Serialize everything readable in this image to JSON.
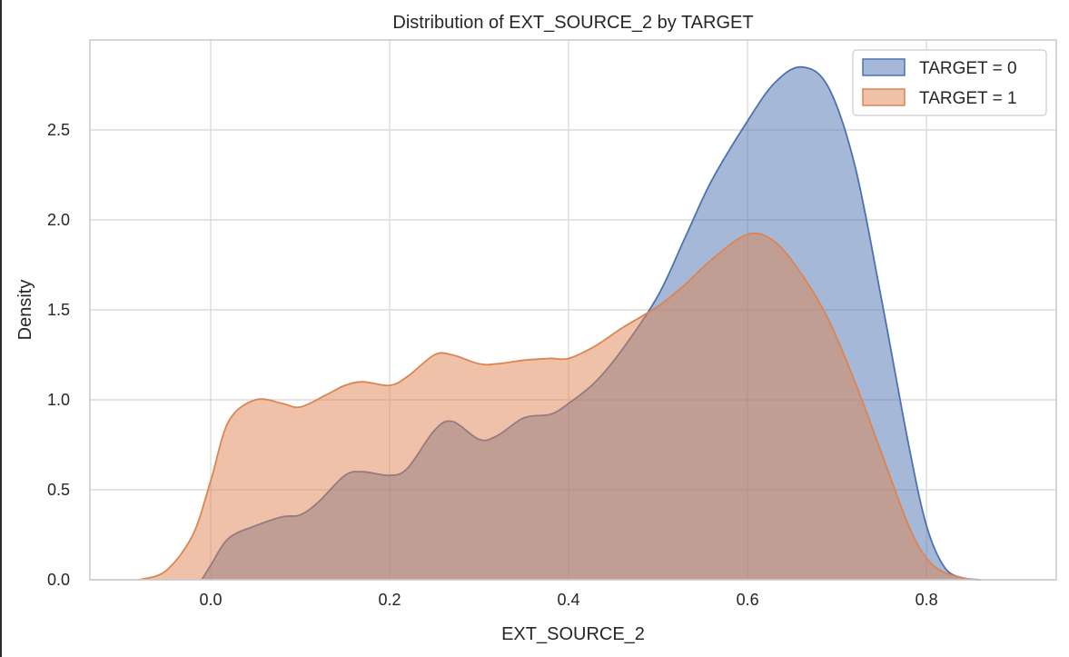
{
  "chart_data": {
    "type": "area",
    "title": "Distribution of EXT_SOURCE_2 by TARGET",
    "xlabel": "EXT_SOURCE_2",
    "ylabel": "Density",
    "xlim": [
      -0.135,
      0.945
    ],
    "ylim": [
      0,
      3.0
    ],
    "xticks": [
      0.0,
      0.2,
      0.4,
      0.6,
      0.8
    ],
    "xtick_labels": [
      "0.0",
      "0.2",
      "0.4",
      "0.6",
      "0.8"
    ],
    "yticks": [
      0.0,
      0.5,
      1.0,
      1.5,
      2.0,
      2.5
    ],
    "ytick_labels": [
      "0.0",
      "0.5",
      "1.0",
      "1.5",
      "2.0",
      "2.5"
    ],
    "grid": true,
    "legend_position": "top-right",
    "series": [
      {
        "name": "TARGET = 0",
        "color": "#4c72b0",
        "x": [
          -0.01,
          0.0,
          0.02,
          0.05,
          0.08,
          0.1,
          0.12,
          0.15,
          0.17,
          0.2,
          0.22,
          0.25,
          0.27,
          0.3,
          0.32,
          0.35,
          0.38,
          0.4,
          0.43,
          0.46,
          0.5,
          0.53,
          0.56,
          0.6,
          0.63,
          0.66,
          0.69,
          0.72,
          0.75,
          0.78,
          0.8,
          0.82,
          0.84,
          0.86
        ],
        "values": [
          0.0,
          0.08,
          0.23,
          0.3,
          0.35,
          0.36,
          0.43,
          0.58,
          0.6,
          0.58,
          0.62,
          0.83,
          0.88,
          0.78,
          0.8,
          0.9,
          0.92,
          0.98,
          1.1,
          1.28,
          1.58,
          1.9,
          2.22,
          2.55,
          2.76,
          2.85,
          2.74,
          2.3,
          1.55,
          0.75,
          0.3,
          0.07,
          0.01,
          0.0
        ]
      },
      {
        "name": "TARGET = 1",
        "color": "#dd8452",
        "x": [
          -0.08,
          -0.05,
          -0.02,
          0.0,
          0.02,
          0.05,
          0.08,
          0.1,
          0.13,
          0.15,
          0.17,
          0.2,
          0.22,
          0.25,
          0.27,
          0.3,
          0.32,
          0.35,
          0.38,
          0.4,
          0.43,
          0.46,
          0.5,
          0.53,
          0.56,
          0.6,
          0.63,
          0.66,
          0.69,
          0.72,
          0.75,
          0.78,
          0.8,
          0.82,
          0.85
        ],
        "values": [
          0.0,
          0.05,
          0.25,
          0.55,
          0.88,
          1.0,
          0.98,
          0.96,
          1.03,
          1.08,
          1.1,
          1.08,
          1.13,
          1.25,
          1.25,
          1.2,
          1.2,
          1.22,
          1.23,
          1.23,
          1.3,
          1.4,
          1.52,
          1.64,
          1.78,
          1.92,
          1.88,
          1.7,
          1.45,
          1.1,
          0.7,
          0.3,
          0.12,
          0.04,
          0.0
        ]
      }
    ]
  }
}
